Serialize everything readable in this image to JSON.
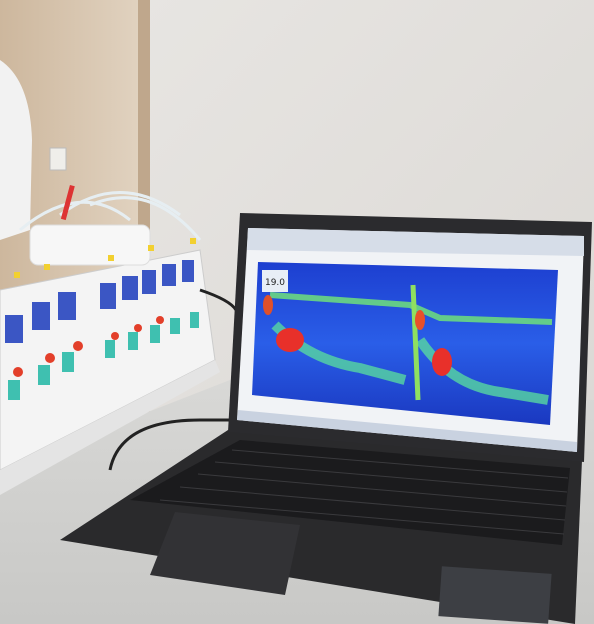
{
  "scene": {
    "screen_readout": "19.0"
  }
}
